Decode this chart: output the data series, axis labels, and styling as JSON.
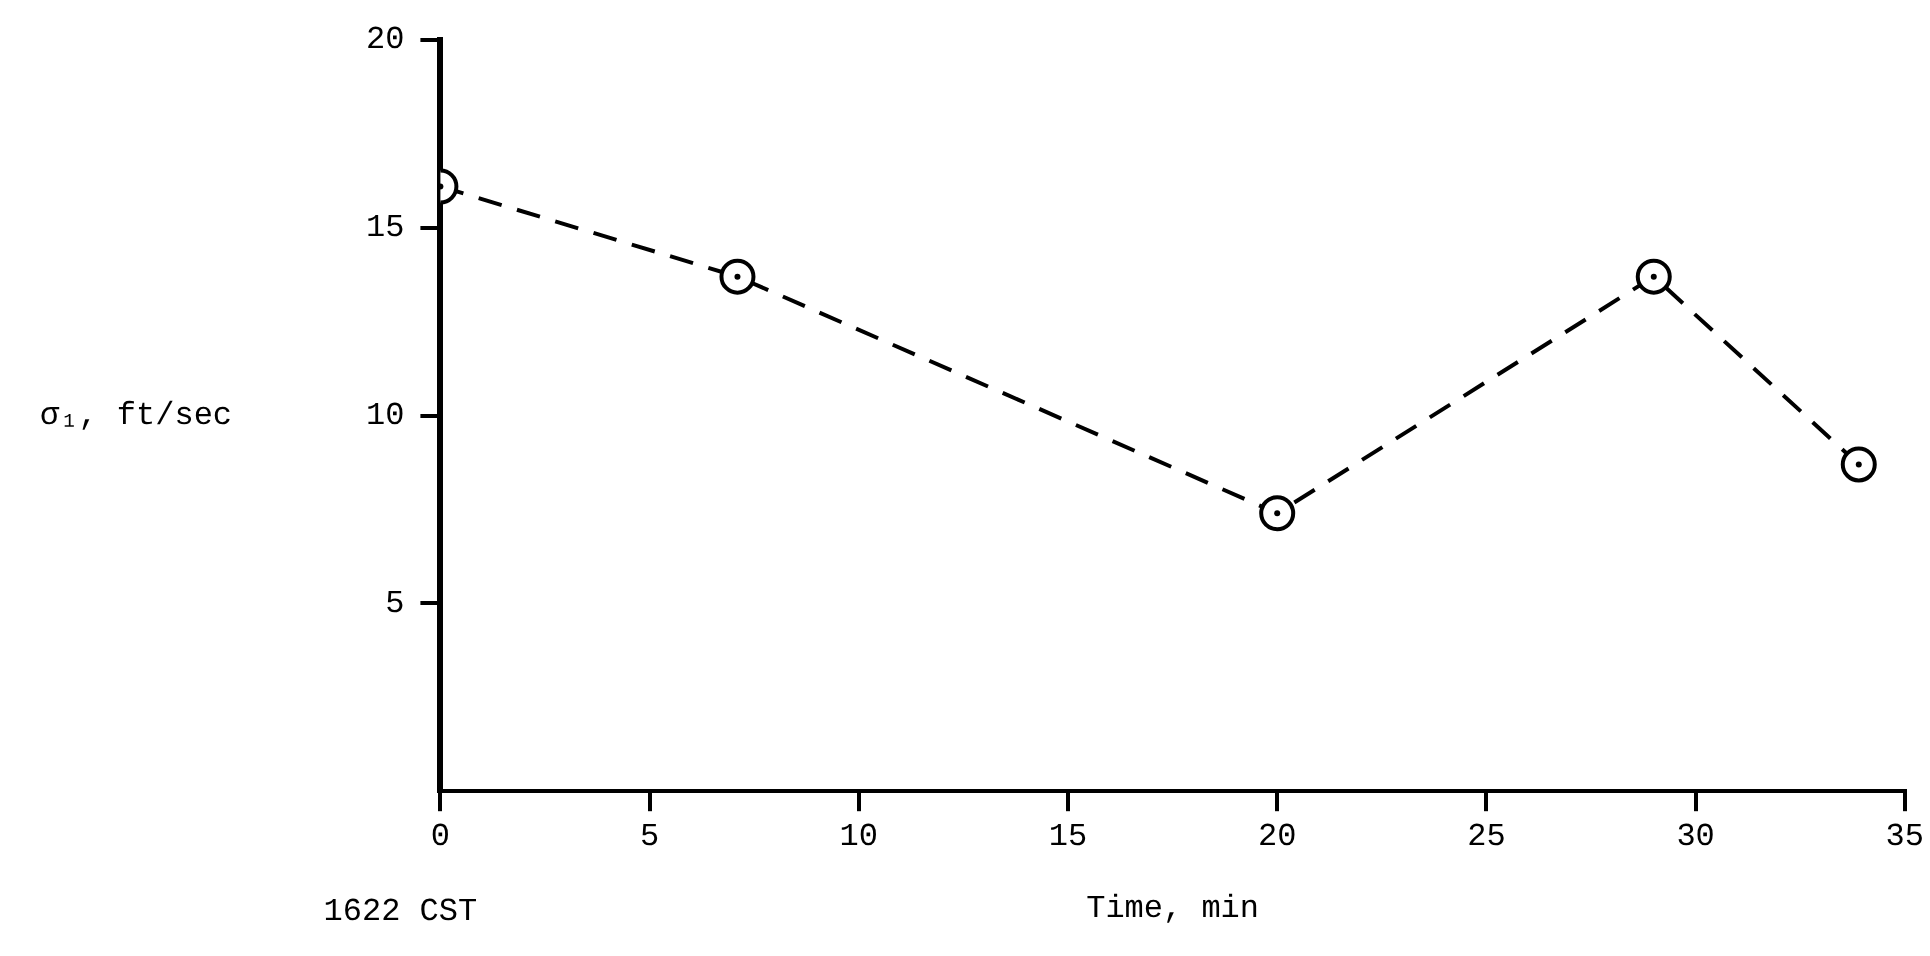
{
  "chart_data": {
    "type": "line",
    "xlabel": "Time, min",
    "ylabel": "σ₁, ft/sec",
    "annotations": [
      "1622 CST"
    ],
    "x": [
      0,
      7.1,
      20,
      29,
      33.9
    ],
    "series": [
      {
        "color": "#000000",
        "values": [
          16.1,
          13.7,
          7.4,
          13.7,
          8.7
        ]
      }
    ],
    "xlim": [
      0,
      35
    ],
    "xticks": [
      0,
      5,
      10,
      15,
      20,
      25,
      30,
      35
    ],
    "ylim": [
      0,
      20
    ],
    "yticks": [
      5,
      10,
      15,
      20
    ],
    "grid": false,
    "legend": false,
    "marker": "circle",
    "line_style": "dashed"
  }
}
